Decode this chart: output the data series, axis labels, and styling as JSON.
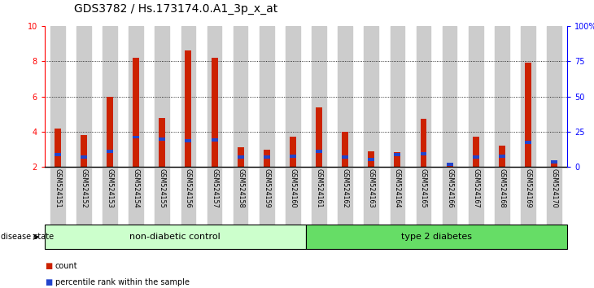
{
  "title": "GDS3782 / Hs.173174.0.A1_3p_x_at",
  "samples": [
    "GSM524151",
    "GSM524152",
    "GSM524153",
    "GSM524154",
    "GSM524155",
    "GSM524156",
    "GSM524157",
    "GSM524158",
    "GSM524159",
    "GSM524160",
    "GSM524161",
    "GSM524162",
    "GSM524163",
    "GSM524164",
    "GSM524165",
    "GSM524166",
    "GSM524167",
    "GSM524168",
    "GSM524169",
    "GSM524170"
  ],
  "red_values": [
    4.2,
    3.8,
    6.0,
    8.2,
    4.8,
    8.6,
    8.2,
    3.1,
    3.0,
    3.7,
    5.4,
    4.0,
    2.9,
    2.85,
    4.75,
    2.2,
    3.7,
    3.2,
    7.9,
    2.2
  ],
  "blue_values": [
    2.7,
    2.55,
    2.9,
    3.7,
    3.6,
    3.5,
    3.55,
    2.55,
    2.55,
    2.6,
    2.9,
    2.55,
    2.45,
    2.7,
    2.75,
    2.15,
    2.55,
    2.6,
    3.4,
    2.3
  ],
  "non_diabetic_count": 10,
  "type2_count": 10,
  "non_diabetic_label": "non-diabetic control",
  "type2_label": "type 2 diabetes",
  "disease_state_label": "disease state",
  "legend_count": "count",
  "legend_percentile": "percentile rank within the sample",
  "ylim_left": [
    2,
    10
  ],
  "ylim_right": [
    0,
    100
  ],
  "yticks_left": [
    2,
    4,
    6,
    8,
    10
  ],
  "yticks_right": [
    0,
    25,
    50,
    75,
    100
  ],
  "ytick_labels_right": [
    "0",
    "25",
    "50",
    "75",
    "100%"
  ],
  "red_color": "#CC2200",
  "blue_color": "#2244CC",
  "non_diabetic_bg": "#CCFFCC",
  "type2_bg": "#66DD66",
  "bar_bg": "#CCCCCC",
  "title_fontsize": 10,
  "tick_fontsize": 7,
  "label_fontsize": 8,
  "bar_width": 0.55,
  "blue_bar_height": 0.18
}
